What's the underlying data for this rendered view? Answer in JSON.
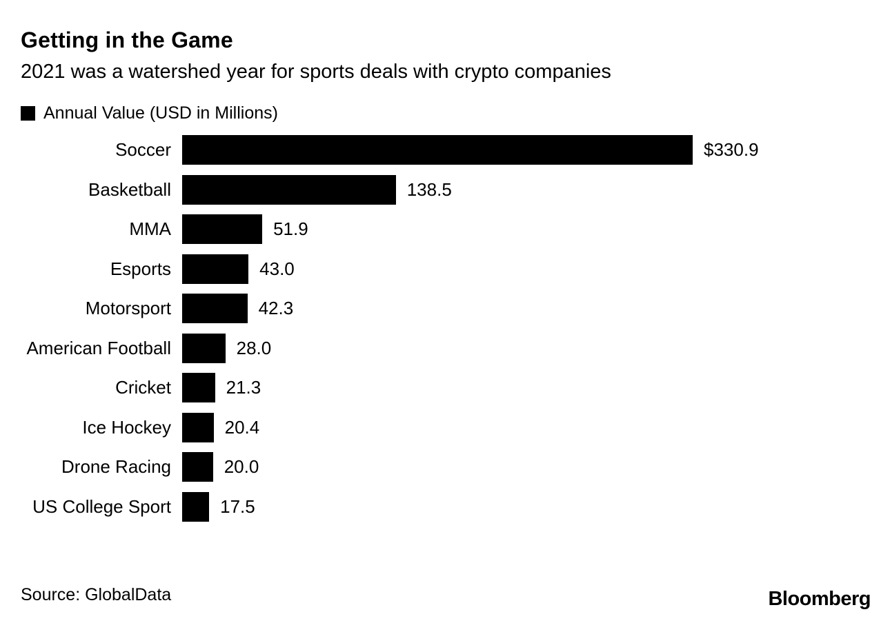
{
  "header": {
    "title": "Getting in the Game",
    "subtitle": "2021 was a watershed year for sports deals with crypto companies"
  },
  "legend": {
    "label": "Annual Value (USD in Millions)",
    "swatch_color": "#000000"
  },
  "footer": {
    "source": "Source: GlobalData",
    "brand": "Bloomberg"
  },
  "chart_data": {
    "type": "bar",
    "orientation": "horizontal",
    "title": "Getting in the Game",
    "subtitle": "2021 was a watershed year for sports deals with crypto companies",
    "xlabel": "",
    "ylabel": "",
    "categories": [
      "Soccer",
      "Basketball",
      "MMA",
      "Esports",
      "Motorsport",
      "American Football",
      "Cricket",
      "Ice Hockey",
      "Drone Racing",
      "US College Sport"
    ],
    "values": [
      330.9,
      138.5,
      51.9,
      43.0,
      42.3,
      28.0,
      21.3,
      20.4,
      20.0,
      17.5
    ],
    "value_labels": [
      "$330.9",
      "138.5",
      "51.9",
      "43.0",
      "42.3",
      "28.0",
      "21.3",
      "20.4",
      "20.0",
      "17.5"
    ],
    "xlim": [
      0,
      330.9
    ],
    "grid": false,
    "bar_color": "#000000",
    "legend": [
      "Annual Value (USD in Millions)"
    ],
    "legend_position": "top-left",
    "source": "Source: GlobalData",
    "brand": "Bloomberg"
  }
}
